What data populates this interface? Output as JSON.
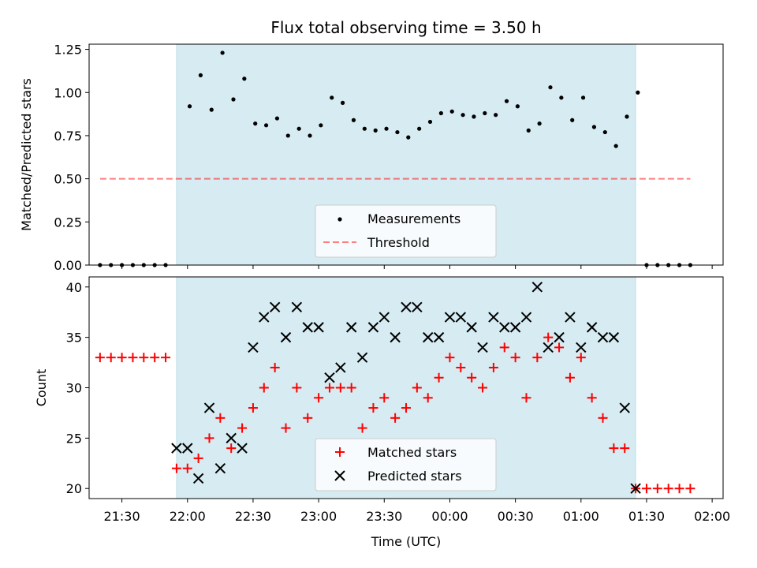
{
  "figure": {
    "title": "Flux total observing time = 3.50 h",
    "xlabel": "Time (UTC)",
    "observing_span_label": "observing-window",
    "colors": {
      "span": "#add8e6",
      "threshold": "#ff0000",
      "measurement": "#000000",
      "matched": "#ff0000",
      "predicted": "#000000"
    }
  },
  "chart_data": [
    {
      "type": "scatter",
      "ylabel": "Matched/Predicted stars",
      "xlim": [
        "21:15",
        "02:05"
      ],
      "ylim": [
        0,
        1.28
      ],
      "xticks": [
        "21:30",
        "22:00",
        "22:30",
        "23:00",
        "23:30",
        "00:00",
        "00:30",
        "01:00",
        "01:30",
        "02:00"
      ],
      "yticks": [
        "0.00",
        "0.25",
        "0.50",
        "0.75",
        "1.00",
        "1.25"
      ],
      "grid": false,
      "legend": "lower-center",
      "observing_window": [
        "21:55",
        "01:25"
      ],
      "threshold": {
        "name": "Threshold",
        "value": 0.5,
        "x": [
          "21:20",
          "01:50"
        ],
        "style": "dashed"
      },
      "series": [
        {
          "name": "Measurements",
          "marker": "dot",
          "points": [
            [
              "21:20",
              0.0
            ],
            [
              "21:25",
              0.0
            ],
            [
              "21:30",
              0.0
            ],
            [
              "21:35",
              0.0
            ],
            [
              "21:40",
              0.0
            ],
            [
              "21:45",
              0.0
            ],
            [
              "21:50",
              0.0
            ],
            [
              "22:01",
              0.92
            ],
            [
              "22:06",
              1.1
            ],
            [
              "22:11",
              0.9
            ],
            [
              "22:16",
              1.23
            ],
            [
              "22:21",
              0.96
            ],
            [
              "22:26",
              1.08
            ],
            [
              "22:31",
              0.82
            ],
            [
              "22:36",
              0.81
            ],
            [
              "22:41",
              0.85
            ],
            [
              "22:46",
              0.75
            ],
            [
              "22:51",
              0.79
            ],
            [
              "22:56",
              0.75
            ],
            [
              "23:01",
              0.81
            ],
            [
              "23:06",
              0.97
            ],
            [
              "23:11",
              0.94
            ],
            [
              "23:16",
              0.84
            ],
            [
              "23:21",
              0.79
            ],
            [
              "23:26",
              0.78
            ],
            [
              "23:31",
              0.79
            ],
            [
              "23:36",
              0.77
            ],
            [
              "23:41",
              0.74
            ],
            [
              "23:46",
              0.79
            ],
            [
              "23:51",
              0.83
            ],
            [
              "23:56",
              0.88
            ],
            [
              "00:01",
              0.89
            ],
            [
              "00:06",
              0.87
            ],
            [
              "00:11",
              0.86
            ],
            [
              "00:16",
              0.88
            ],
            [
              "00:21",
              0.87
            ],
            [
              "00:26",
              0.95
            ],
            [
              "00:31",
              0.92
            ],
            [
              "00:36",
              0.78
            ],
            [
              "00:41",
              0.82
            ],
            [
              "00:46",
              1.03
            ],
            [
              "00:51",
              0.97
            ],
            [
              "00:56",
              0.84
            ],
            [
              "01:01",
              0.97
            ],
            [
              "01:06",
              0.8
            ],
            [
              "01:11",
              0.77
            ],
            [
              "01:16",
              0.69
            ],
            [
              "01:21",
              0.86
            ],
            [
              "01:26",
              1.0
            ],
            [
              "01:30",
              0.0
            ],
            [
              "01:35",
              0.0
            ],
            [
              "01:40",
              0.0
            ],
            [
              "01:45",
              0.0
            ],
            [
              "01:50",
              0.0
            ]
          ]
        }
      ]
    },
    {
      "type": "scatter",
      "ylabel": "Count",
      "xlim": [
        "21:15",
        "02:05"
      ],
      "ylim": [
        19,
        41
      ],
      "xticks": [
        "21:30",
        "22:00",
        "22:30",
        "23:00",
        "23:30",
        "00:00",
        "00:30",
        "01:00",
        "01:30",
        "02:00"
      ],
      "yticks": [
        "20",
        "25",
        "30",
        "35",
        "40"
      ],
      "grid": false,
      "legend": "lower-center",
      "observing_window": [
        "21:55",
        "01:25"
      ],
      "series": [
        {
          "name": "Matched stars",
          "marker": "plus",
          "points": [
            [
              "21:20",
              33
            ],
            [
              "21:25",
              33
            ],
            [
              "21:30",
              33
            ],
            [
              "21:35",
              33
            ],
            [
              "21:40",
              33
            ],
            [
              "21:45",
              33
            ],
            [
              "21:50",
              33
            ],
            [
              "21:55",
              22
            ],
            [
              "22:00",
              22
            ],
            [
              "22:05",
              23
            ],
            [
              "22:10",
              25
            ],
            [
              "22:15",
              27
            ],
            [
              "22:20",
              24
            ],
            [
              "22:25",
              26
            ],
            [
              "22:30",
              28
            ],
            [
              "22:35",
              30
            ],
            [
              "22:40",
              32
            ],
            [
              "22:45",
              26
            ],
            [
              "22:50",
              30
            ],
            [
              "22:55",
              27
            ],
            [
              "23:00",
              29
            ],
            [
              "23:05",
              30
            ],
            [
              "23:10",
              30
            ],
            [
              "23:15",
              30
            ],
            [
              "23:20",
              26
            ],
            [
              "23:25",
              28
            ],
            [
              "23:30",
              29
            ],
            [
              "23:35",
              27
            ],
            [
              "23:40",
              28
            ],
            [
              "23:45",
              30
            ],
            [
              "23:50",
              29
            ],
            [
              "23:55",
              31
            ],
            [
              "00:00",
              33
            ],
            [
              "00:05",
              32
            ],
            [
              "00:10",
              31
            ],
            [
              "00:15",
              30
            ],
            [
              "00:20",
              32
            ],
            [
              "00:25",
              34
            ],
            [
              "00:30",
              33
            ],
            [
              "00:35",
              29
            ],
            [
              "00:40",
              33
            ],
            [
              "00:45",
              35
            ],
            [
              "00:50",
              34
            ],
            [
              "00:55",
              31
            ],
            [
              "01:00",
              33
            ],
            [
              "01:05",
              29
            ],
            [
              "01:10",
              27
            ],
            [
              "01:15",
              24
            ],
            [
              "01:20",
              24
            ],
            [
              "01:25",
              20
            ],
            [
              "01:30",
              20
            ],
            [
              "01:35",
              20
            ],
            [
              "01:40",
              20
            ],
            [
              "01:45",
              20
            ],
            [
              "01:50",
              20
            ]
          ]
        },
        {
          "name": "Predicted stars",
          "marker": "x",
          "points": [
            [
              "21:55",
              24
            ],
            [
              "22:00",
              24
            ],
            [
              "22:05",
              21
            ],
            [
              "22:10",
              28
            ],
            [
              "22:15",
              22
            ],
            [
              "22:20",
              25
            ],
            [
              "22:25",
              24
            ],
            [
              "22:30",
              34
            ],
            [
              "22:35",
              37
            ],
            [
              "22:40",
              38
            ],
            [
              "22:45",
              35
            ],
            [
              "22:50",
              38
            ],
            [
              "22:55",
              36
            ],
            [
              "23:00",
              36
            ],
            [
              "23:05",
              31
            ],
            [
              "23:10",
              32
            ],
            [
              "23:15",
              36
            ],
            [
              "23:20",
              33
            ],
            [
              "23:25",
              36
            ],
            [
              "23:30",
              37
            ],
            [
              "23:35",
              35
            ],
            [
              "23:40",
              38
            ],
            [
              "23:45",
              38
            ],
            [
              "23:50",
              35
            ],
            [
              "23:55",
              35
            ],
            [
              "00:00",
              37
            ],
            [
              "00:05",
              37
            ],
            [
              "00:10",
              36
            ],
            [
              "00:15",
              34
            ],
            [
              "00:20",
              37
            ],
            [
              "00:25",
              36
            ],
            [
              "00:30",
              36
            ],
            [
              "00:35",
              37
            ],
            [
              "00:40",
              40
            ],
            [
              "00:45",
              34
            ],
            [
              "00:50",
              35
            ],
            [
              "00:55",
              37
            ],
            [
              "01:00",
              34
            ],
            [
              "01:05",
              36
            ],
            [
              "01:10",
              35
            ],
            [
              "01:15",
              35
            ],
            [
              "01:20",
              28
            ],
            [
              "01:25",
              20
            ]
          ]
        }
      ]
    }
  ]
}
